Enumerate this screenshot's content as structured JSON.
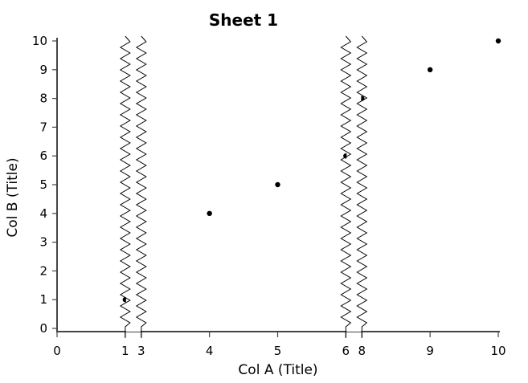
{
  "chart_data": {
    "type": "scatter",
    "title": "Sheet 1",
    "xlabel": "Col A (Title)",
    "ylabel": "Col B (Title)",
    "xlim": [
      0,
      10
    ],
    "ylim": [
      0,
      10
    ],
    "x_ticks": [
      0,
      1,
      3,
      4,
      5,
      6,
      8,
      9,
      10
    ],
    "y_ticks": [
      0,
      1,
      2,
      3,
      4,
      5,
      6,
      7,
      8,
      9,
      10
    ],
    "axis_breaks": [
      [
        1,
        3
      ],
      [
        6,
        8
      ]
    ],
    "grid": false,
    "series": [
      {
        "color": "#000000",
        "points": [
          {
            "x": 1,
            "y": 1
          },
          {
            "x": 4,
            "y": 4
          },
          {
            "x": 5,
            "y": 5
          },
          {
            "x": 6,
            "y": 6
          },
          {
            "x": 8,
            "y": 8
          },
          {
            "x": 9,
            "y": 9
          },
          {
            "x": 10,
            "y": 10
          }
        ]
      }
    ]
  }
}
